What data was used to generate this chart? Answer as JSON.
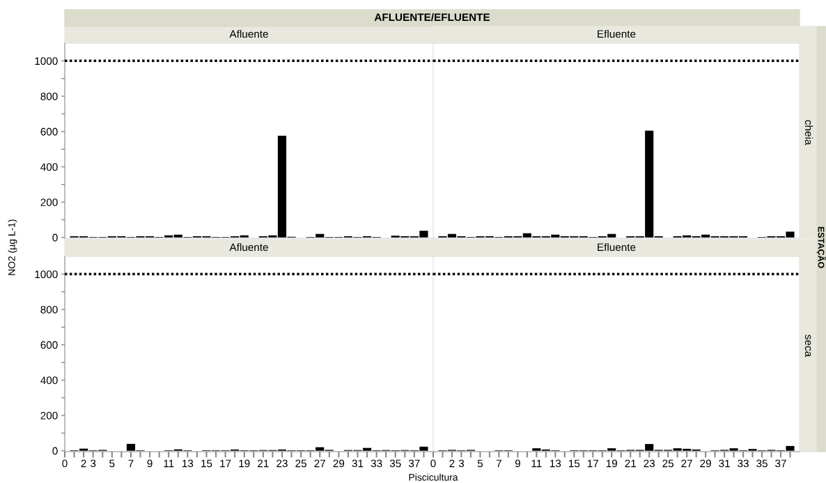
{
  "chart_data": [
    {
      "type": "bar",
      "title": "Afluente",
      "ylabel": "NO2 (µg L-1)",
      "annotations": [
        "AFLUENTE/EFLUENTE",
        "ESTAÇÃO"
      ],
      "x": [
        1,
        2,
        3,
        4,
        5,
        6,
        7,
        8,
        9,
        10,
        11,
        12,
        13,
        14,
        15,
        16,
        17,
        18,
        19,
        20,
        21,
        22,
        23,
        24,
        25,
        26,
        27,
        28,
        29,
        30,
        31,
        32,
        33,
        34,
        35,
        36,
        37,
        38
      ],
      "values": [
        7,
        7,
        3,
        3,
        7,
        7,
        3,
        7,
        7,
        3,
        12,
        16,
        3,
        7,
        7,
        3,
        3,
        7,
        12,
        null,
        7,
        12,
        576,
        4,
        null,
        3,
        20,
        3,
        3,
        7,
        3,
        7,
        3,
        null,
        10,
        7,
        7,
        38
      ],
      "color": "#000000",
      "xlim": [
        0,
        39
      ],
      "ylim": [
        -5,
        1100
      ],
      "yticks": [
        0,
        {
          "value": 100,
          "label": null
        },
        200,
        {
          "value": 300,
          "label": null
        },
        400,
        {
          "value": 500,
          "label": null
        },
        600,
        {
          "value": 700,
          "label": null
        },
        800,
        {
          "value": 900,
          "label": null
        },
        1000
      ],
      "ref_lines": [
        {
          "axis": "y",
          "value": 1000,
          "color": "#000000",
          "line_style": "dotted"
        }
      ],
      "tick_labels": "y",
      "grid": false,
      "legend": false
    },
    {
      "type": "bar",
      "title": "Efluente",
      "annotations": [
        "cheia"
      ],
      "x": [
        1,
        2,
        3,
        4,
        5,
        6,
        7,
        8,
        9,
        10,
        11,
        12,
        13,
        14,
        15,
        16,
        17,
        18,
        19,
        20,
        21,
        22,
        23,
        24,
        25,
        26,
        27,
        28,
        29,
        30,
        31,
        32,
        33,
        34,
        35,
        36,
        37,
        38
      ],
      "values": [
        7,
        20,
        7,
        3,
        7,
        7,
        3,
        7,
        7,
        24,
        7,
        7,
        16,
        7,
        7,
        7,
        3,
        7,
        20,
        null,
        7,
        7,
        605,
        7,
        null,
        7,
        12,
        7,
        16,
        7,
        7,
        7,
        7,
        null,
        3,
        7,
        7,
        33
      ],
      "color": "#000000",
      "xlim": [
        0,
        39
      ],
      "ylim": [
        -5,
        1100
      ],
      "ref_lines": [
        {
          "axis": "y",
          "value": 1000,
          "color": "#000000",
          "line_style": "dotted"
        }
      ],
      "tick_labels": false,
      "grid": false,
      "legend": false
    },
    {
      "type": "bar",
      "title": "Afluente",
      "xlabel": "Piscicultura",
      "x": [
        1,
        2,
        3,
        4,
        5,
        6,
        7,
        8,
        9,
        10,
        11,
        12,
        13,
        14,
        15,
        16,
        17,
        18,
        19,
        20,
        21,
        22,
        23,
        24,
        25,
        26,
        27,
        28,
        29,
        30,
        31,
        32,
        33,
        34,
        35,
        36,
        37,
        38
      ],
      "values": [
        3,
        12,
        3,
        5,
        null,
        null,
        39,
        3,
        null,
        null,
        3,
        8,
        3,
        null,
        3,
        3,
        3,
        7,
        3,
        3,
        4,
        4,
        7,
        3,
        3,
        3,
        20,
        5,
        null,
        4,
        4,
        16,
        3,
        4,
        3,
        4,
        3,
        23
      ],
      "color": "#000000",
      "xlim": [
        0,
        39
      ],
      "ylim": [
        -5,
        1100
      ],
      "yticks": [
        0,
        {
          "value": 100,
          "label": null
        },
        200,
        {
          "value": 300,
          "label": null
        },
        400,
        {
          "value": 500,
          "label": null
        },
        600,
        {
          "value": 700,
          "label": null
        },
        800,
        {
          "value": 900,
          "label": null
        },
        1000
      ],
      "xticks": [
        0,
        {
          "value": 1,
          "label": null
        },
        2,
        3,
        {
          "value": 4,
          "label": null
        },
        5,
        {
          "value": 6,
          "label": null
        },
        7,
        {
          "value": 8,
          "label": null
        },
        9,
        {
          "value": 10,
          "label": null
        },
        11,
        {
          "value": 12,
          "label": null
        },
        13,
        {
          "value": 14,
          "label": null
        },
        15,
        {
          "value": 16,
          "label": null
        },
        17,
        {
          "value": 18,
          "label": null
        },
        19,
        {
          "value": 20,
          "label": null
        },
        21,
        {
          "value": 22,
          "label": null
        },
        23,
        {
          "value": 24,
          "label": null
        },
        25,
        {
          "value": 26,
          "label": null
        },
        27,
        {
          "value": 28,
          "label": null
        },
        29,
        {
          "value": 30,
          "label": null
        },
        31,
        {
          "value": 32,
          "label": null
        },
        33,
        {
          "value": 34,
          "label": null
        },
        35,
        {
          "value": 36,
          "label": null
        },
        37,
        {
          "value": 38,
          "label": null
        }
      ],
      "ref_lines": [
        {
          "axis": "y",
          "value": 1000,
          "color": "#000000",
          "line_style": "dotted"
        }
      ],
      "grid": false,
      "legend": false
    },
    {
      "type": "bar",
      "title": "Efluente",
      "annotations": [
        "seca"
      ],
      "x": [
        1,
        2,
        3,
        4,
        5,
        6,
        7,
        8,
        9,
        10,
        11,
        12,
        13,
        14,
        15,
        16,
        17,
        18,
        19,
        20,
        21,
        22,
        23,
        24,
        25,
        26,
        27,
        28,
        29,
        30,
        31,
        32,
        33,
        34,
        35,
        36,
        37,
        38
      ],
      "values": [
        3,
        5,
        3,
        5,
        null,
        null,
        3,
        3,
        null,
        null,
        14,
        7,
        3,
        null,
        3,
        3,
        3,
        3,
        14,
        3,
        5,
        5,
        38,
        5,
        5,
        14,
        11,
        7,
        null,
        3,
        5,
        14,
        3,
        10,
        3,
        5,
        3,
        27
      ],
      "color": "#000000",
      "xlim": [
        0,
        39
      ],
      "ylim": [
        -5,
        1100
      ],
      "xticks": [
        0,
        {
          "value": 1,
          "label": null
        },
        2,
        3,
        {
          "value": 4,
          "label": null
        },
        5,
        {
          "value": 6,
          "label": null
        },
        7,
        {
          "value": 8,
          "label": null
        },
        9,
        {
          "value": 10,
          "label": null
        },
        11,
        {
          "value": 12,
          "label": null
        },
        13,
        {
          "value": 14,
          "label": null
        },
        15,
        {
          "value": 16,
          "label": null
        },
        17,
        {
          "value": 18,
          "label": null
        },
        19,
        {
          "value": 20,
          "label": null
        },
        21,
        {
          "value": 22,
          "label": null
        },
        23,
        {
          "value": 24,
          "label": null
        },
        25,
        {
          "value": 26,
          "label": null
        },
        27,
        {
          "value": 28,
          "label": null
        },
        29,
        {
          "value": 30,
          "label": null
        },
        31,
        {
          "value": 32,
          "label": null
        },
        33,
        {
          "value": 34,
          "label": null
        },
        35,
        {
          "value": 36,
          "label": null
        },
        37,
        {
          "value": 38,
          "label": null
        }
      ],
      "ref_lines": [
        {
          "axis": "y",
          "value": 1000,
          "color": "#000000",
          "line_style": "dotted"
        }
      ],
      "tick_labels": "x",
      "grid": false,
      "legend": false
    }
  ]
}
